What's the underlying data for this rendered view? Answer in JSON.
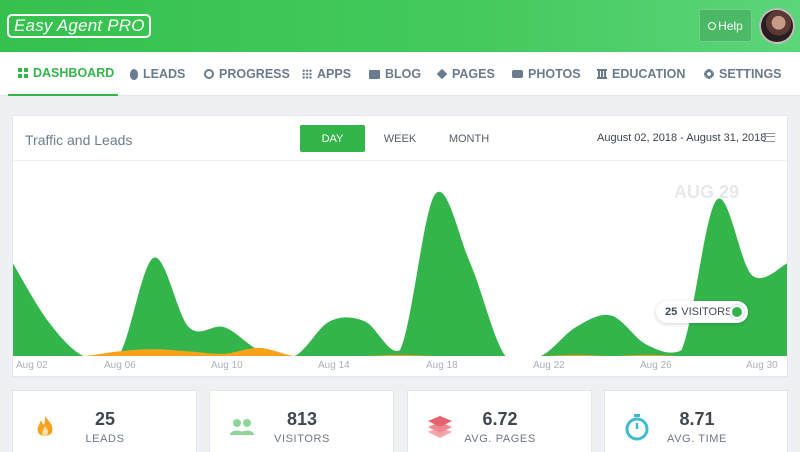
{
  "header": {
    "logo_text": "Easy Agent PRO",
    "help_label": "Help"
  },
  "nav": {
    "items": [
      {
        "label": "DASHBOARD",
        "icon": "dashboard-grid-icon",
        "active": true
      },
      {
        "label": "LEADS",
        "icon": "fire-icon"
      },
      {
        "label": "PROGRESS",
        "icon": "fingerprint-icon"
      },
      {
        "label": "APPS",
        "icon": "apps-grid-icon"
      },
      {
        "label": "BLOG",
        "icon": "book-icon"
      },
      {
        "label": "PAGES",
        "icon": "layers-icon"
      },
      {
        "label": "PHOTOS",
        "icon": "camera-icon"
      },
      {
        "label": "EDUCATION",
        "icon": "bank-icon"
      },
      {
        "label": "SETTINGS",
        "icon": "gear-icon"
      }
    ]
  },
  "traffic": {
    "title": "Traffic and Leads",
    "periods": [
      "DAY",
      "WEEK",
      "MONTH"
    ],
    "active_period": "DAY",
    "date_range": "August 02, 2018 - August 31, 2018",
    "hover_date": "AUG 29",
    "tooltip": {
      "value": "25",
      "unit": "VISITORS"
    }
  },
  "chart_data": {
    "type": "area",
    "x_ticks": [
      "Aug 02",
      "Aug 06",
      "Aug 10",
      "Aug 14",
      "Aug 18",
      "Aug 22",
      "Aug 26",
      "Aug 30"
    ],
    "series": [
      {
        "values": [
          80,
          30,
          0,
          0,
          85,
          25,
          25,
          5,
          0,
          30,
          30,
          5,
          140,
          80,
          0,
          0,
          25,
          35,
          10,
          5,
          135,
          70,
          80
        ]
      },
      {
        "values": [
          0,
          0,
          0,
          4,
          6,
          4,
          2,
          7,
          0,
          0,
          0,
          1,
          0,
          0,
          0,
          0,
          1,
          0,
          1,
          0,
          0,
          0,
          0
        ]
      }
    ],
    "colors": [
      "#33b54b",
      "#f7a21a"
    ],
    "ylim": [
      0,
      160
    ],
    "grid": false
  },
  "stats": [
    {
      "value": "25",
      "label": "LEADS",
      "icon": "fire-icon",
      "color": "#f7a21a"
    },
    {
      "value": "813",
      "label": "VISITORS",
      "icon": "users-icon",
      "color": "#8fd69b"
    },
    {
      "value": "6.72",
      "label": "AVG. PAGES",
      "icon": "layers-icon",
      "color": "#e8636f"
    },
    {
      "value": "8.71",
      "label": "AVG. TIME",
      "icon": "stopwatch-icon",
      "color": "#3fbad3"
    }
  ]
}
